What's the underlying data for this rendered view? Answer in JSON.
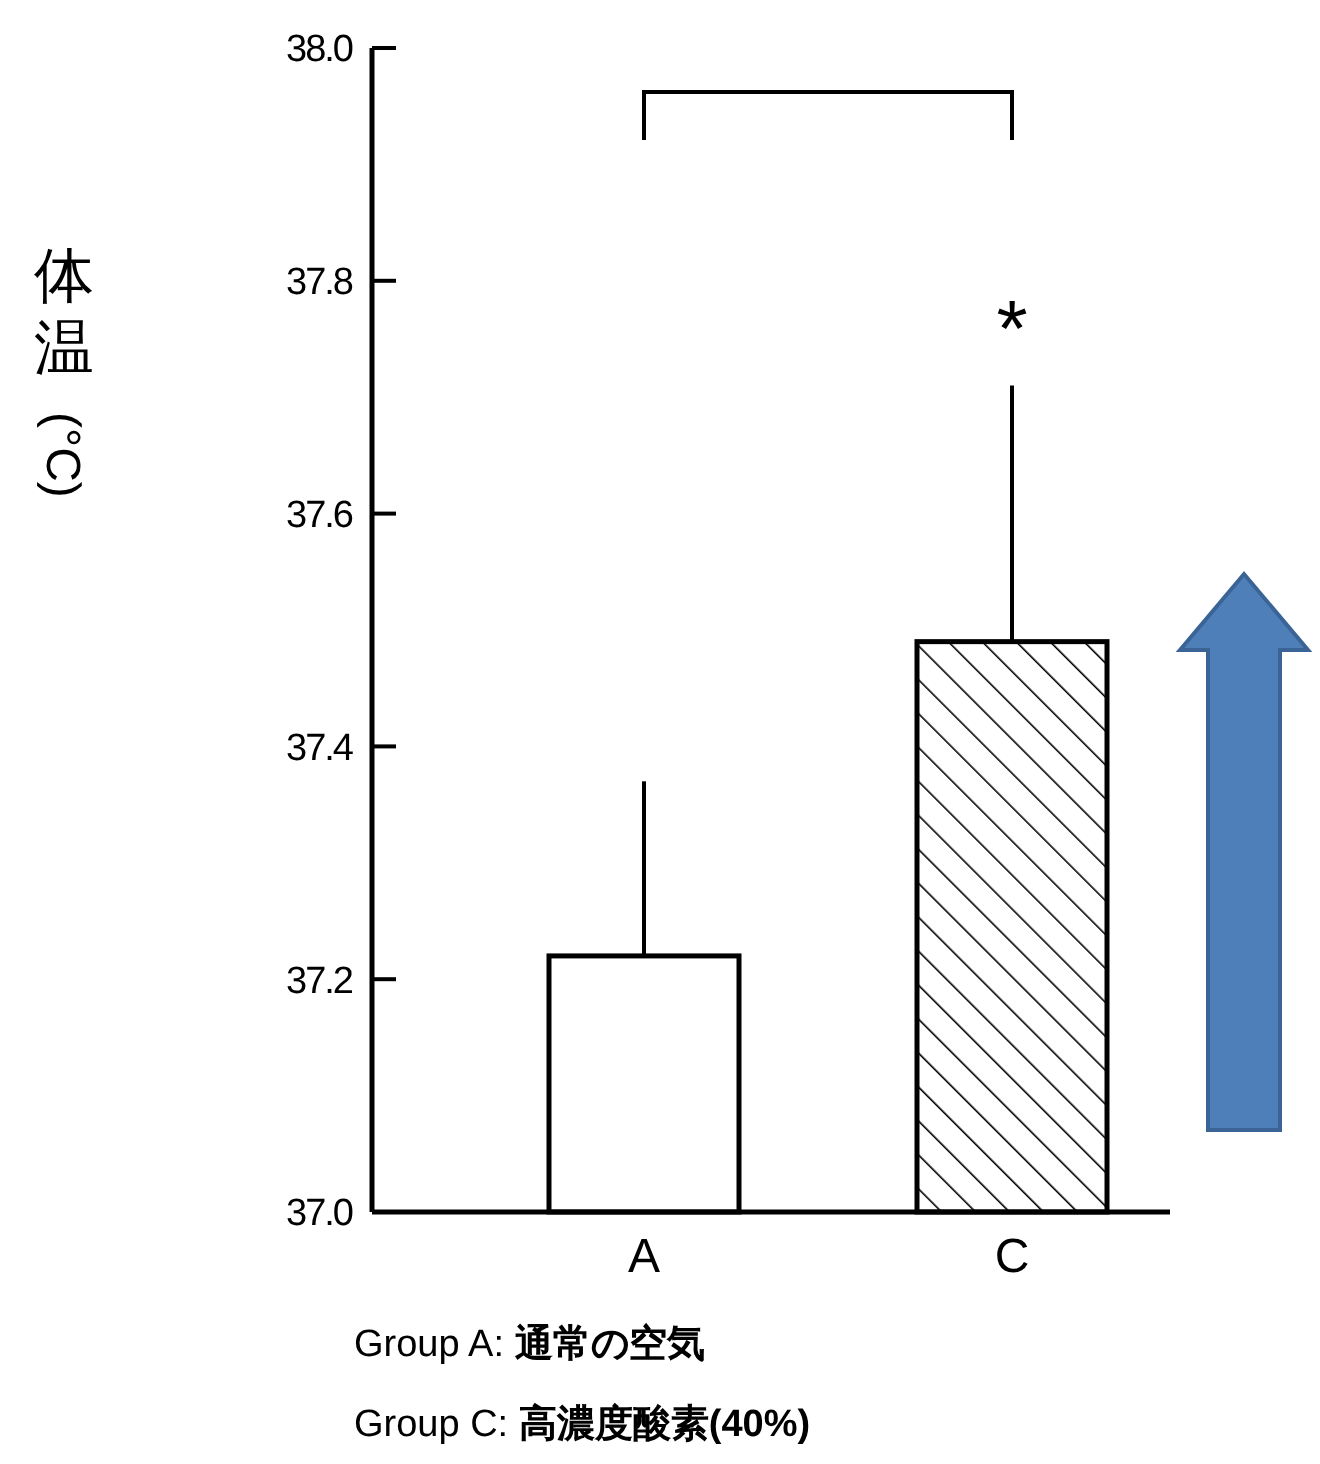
{
  "chart_data": {
    "type": "bar",
    "ylabel": "体温(°C)",
    "categories": [
      "A",
      "C"
    ],
    "values": [
      37.22,
      37.49
    ],
    "errors": [
      [
        37.22,
        37.37
      ],
      [
        37.49,
        37.71
      ]
    ],
    "colors": [
      "#ffffff",
      "#000000"
    ],
    "ylim": [
      37.0,
      38.0
    ],
    "yticks": [
      {
        "value": 37.0,
        "label": "37.0"
      },
      {
        "value": 37.2,
        "label": "37.2"
      },
      {
        "value": 37.4,
        "label": "37.4"
      },
      {
        "value": 37.6,
        "label": "37.6"
      },
      {
        "value": 37.8,
        "label": "37.8"
      },
      {
        "value": 38.0,
        "label": "38.0"
      }
    ],
    "grid": false,
    "annotations": [
      "*",
      "Group A: 通常の空気",
      "Group C: 高濃度酸素(40%)"
    ]
  }
}
